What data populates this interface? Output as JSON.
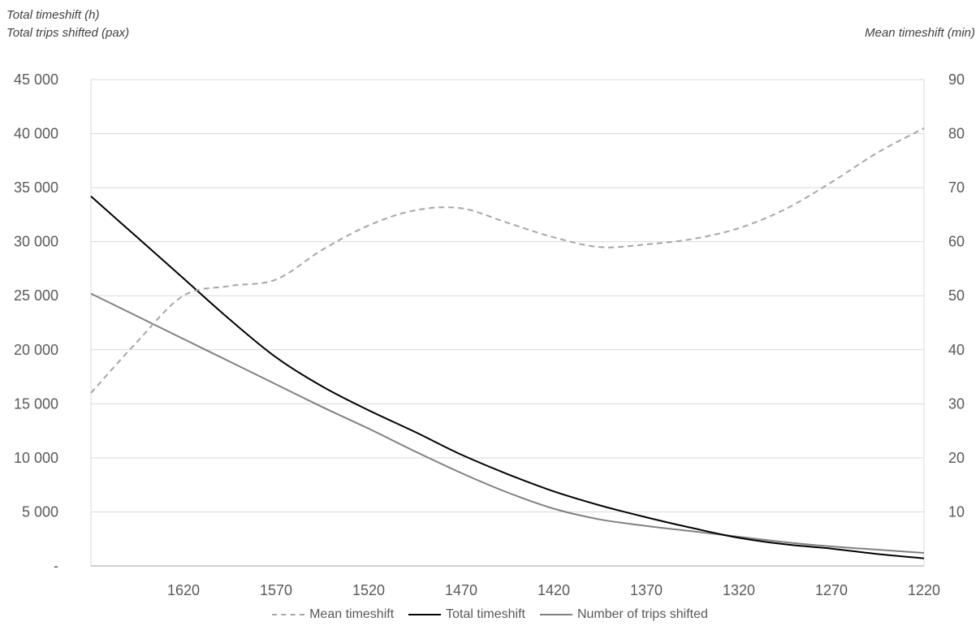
{
  "labels": {
    "left_1": "Total timeshift (h)",
    "left_2": "Total trips shifted (pax)",
    "right": "Mean timeshift (min)"
  },
  "chart_data": {
    "type": "line",
    "x_reversed": true,
    "x": [
      1670,
      1645,
      1620,
      1595,
      1570,
      1545,
      1520,
      1495,
      1470,
      1445,
      1420,
      1395,
      1370,
      1345,
      1320,
      1295,
      1270,
      1245,
      1220
    ],
    "x_ticks": [
      "1620",
      "1570",
      "1520",
      "1470",
      "1420",
      "1370",
      "1320",
      "1270",
      "1220"
    ],
    "y_left_ticks": [
      "-",
      "5 000",
      "10 000",
      "15 000",
      "20 000",
      "25 000",
      "30 000",
      "35 000",
      "40 000",
      "45 000"
    ],
    "y_right_ticks": [
      "",
      "10",
      "20",
      "30",
      "40",
      "50",
      "60",
      "70",
      "80",
      "90"
    ],
    "ylim_left": [
      0,
      45000
    ],
    "ylim_right": [
      0,
      90
    ],
    "grid": true,
    "legend_position": "bottom",
    "series": [
      {
        "name": "Mean timeshift",
        "axis": "right",
        "style": "dashed",
        "color": "#a6a6a6",
        "values": [
          32,
          41.5,
          50,
          51.8,
          53,
          58.5,
          63,
          65.8,
          66.2,
          63.5,
          60.8,
          59,
          59.5,
          60.5,
          62.5,
          66,
          71,
          76.5,
          81
        ]
      },
      {
        "name": "Total timeshift",
        "axis": "left",
        "style": "solid",
        "color": "#000000",
        "values": [
          34200,
          30400,
          26600,
          22800,
          19300,
          16600,
          14400,
          12400,
          10300,
          8500,
          6900,
          5600,
          4500,
          3500,
          2600,
          2000,
          1600,
          1100,
          700
        ]
      },
      {
        "name": "Number of trips shifted",
        "axis": "left",
        "style": "solid",
        "color": "#808080",
        "values": [
          25200,
          23100,
          21000,
          18900,
          16800,
          14700,
          12700,
          10600,
          8600,
          6800,
          5300,
          4300,
          3700,
          3200,
          2700,
          2200,
          1800,
          1500,
          1200
        ]
      }
    ]
  }
}
